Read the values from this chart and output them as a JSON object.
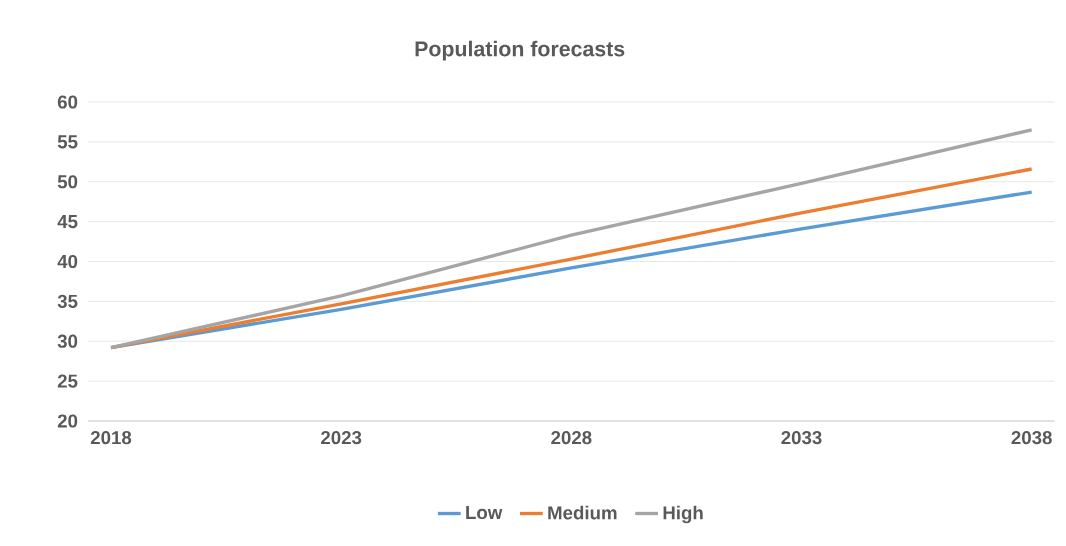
{
  "chart_data": {
    "type": "line",
    "title": "Population forecasts",
    "x": [
      2018,
      2023,
      2028,
      2033,
      2038
    ],
    "series": [
      {
        "name": "Low",
        "color": "#5b9bd5",
        "values": [
          29.2,
          34.0,
          39.2,
          44.1,
          48.7
        ]
      },
      {
        "name": "Medium",
        "color": "#ed7d31",
        "values": [
          29.2,
          34.7,
          40.3,
          46.1,
          51.6
        ]
      },
      {
        "name": "High",
        "color": "#a5a5a5",
        "values": [
          29.2,
          35.7,
          43.3,
          49.8,
          56.5
        ]
      }
    ],
    "xlim": [
      2017.5,
      2038.5
    ],
    "xticks": [
      2018,
      2023,
      2028,
      2033,
      2038
    ],
    "ylim": [
      20,
      60
    ],
    "yticks": [
      20,
      25,
      30,
      35,
      40,
      45,
      50,
      55,
      60
    ],
    "grid": "y",
    "legend": "bottom",
    "marker": "none",
    "line_style": "solid"
  }
}
